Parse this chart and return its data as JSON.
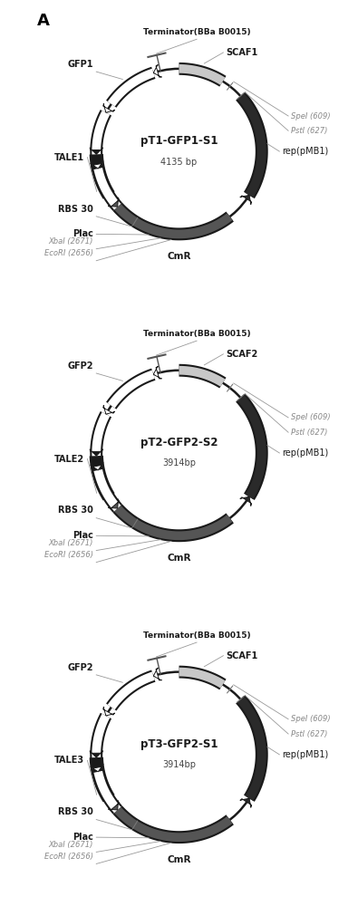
{
  "plasmids": [
    {
      "name": "pT1-GFP1-S1",
      "bp": "4135 bp",
      "gfp_label": "GFP1",
      "tale_label": "TALE1",
      "scaf_label": "SCAF1"
    },
    {
      "name": "pT2-GFP2-S2",
      "bp": "3914bp",
      "gfp_label": "GFP2",
      "tale_label": "TALE2",
      "scaf_label": "SCAF2"
    },
    {
      "name": "pT3-GFP2-S1",
      "bp": "3914bp",
      "gfp_label": "GFP2",
      "tale_label": "TALE3",
      "scaf_label": "SCAF1"
    }
  ],
  "common_labels": {
    "terminator": "Terminator(BBa B0015)",
    "spei": "SpeI (609)",
    "psti": "PstI (627)",
    "rep": "rep(pMB1)",
    "cmr": "CmR",
    "rbs": "RBS 30",
    "plac": "Plac",
    "xbai": "XbaI (2671)",
    "ecori": "EcoRI (2656)"
  }
}
